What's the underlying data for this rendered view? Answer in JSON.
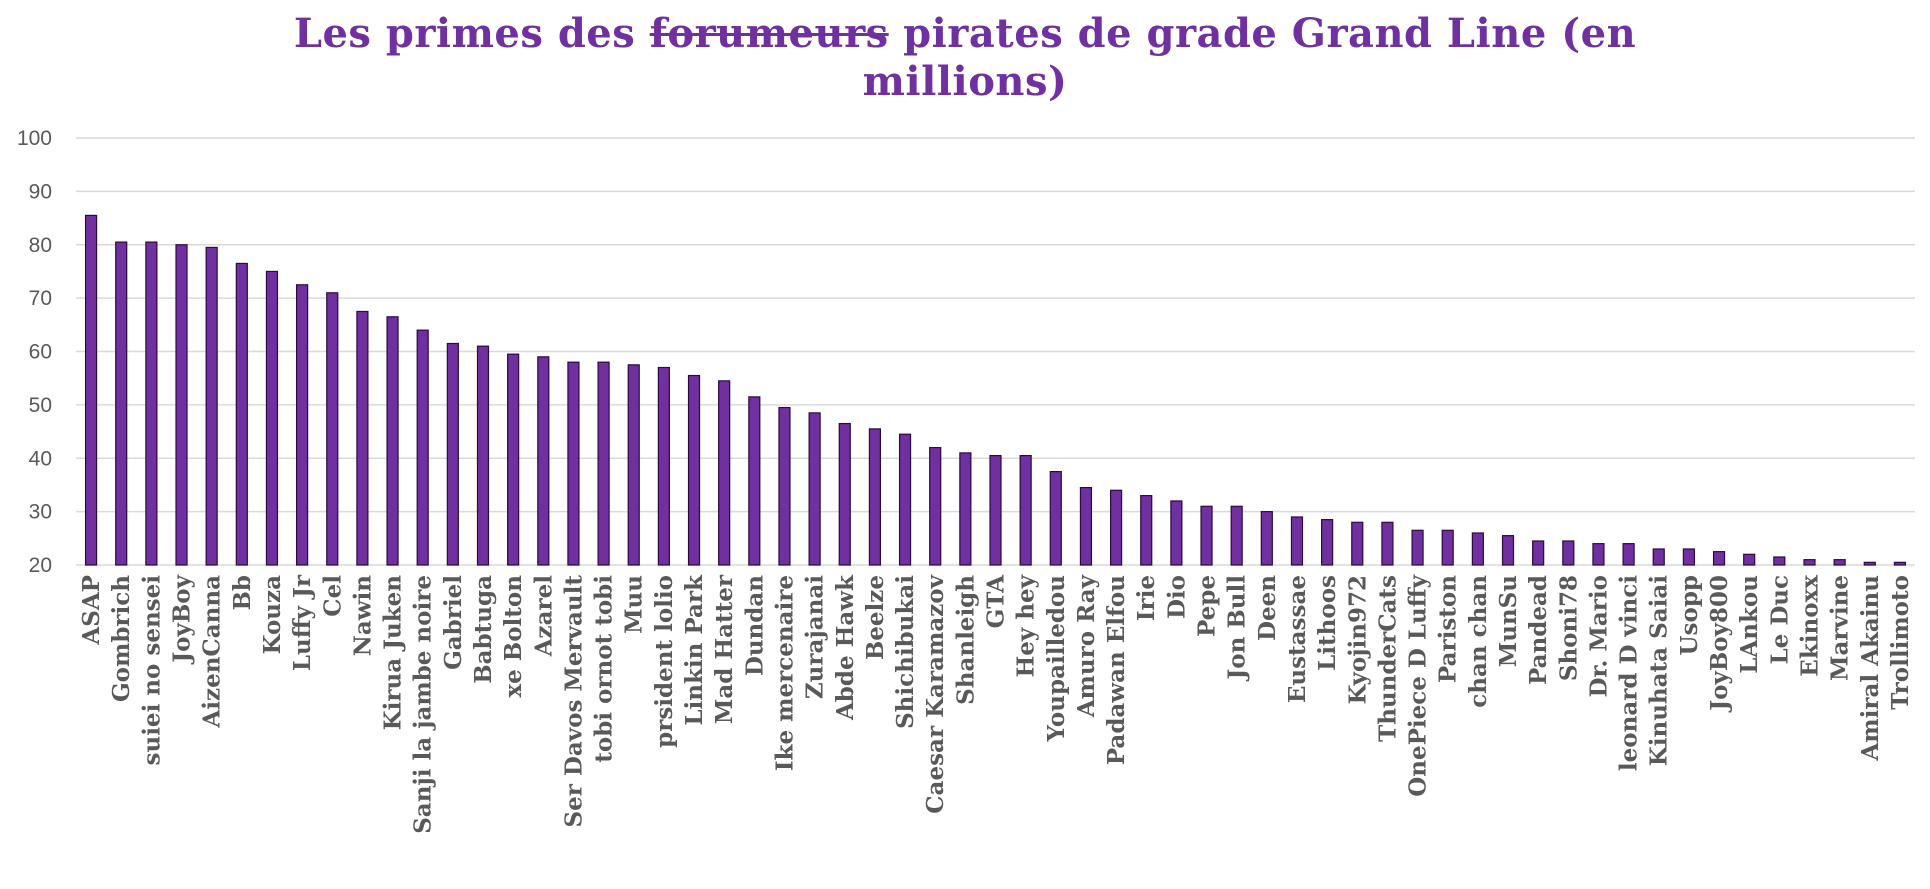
{
  "title": {
    "part1": "Les primes des ",
    "struck": "forumeurs",
    "part2": " pirates de grade Grand Line (en",
    "line2": "millions)"
  },
  "colors": {
    "bar": "#7030a0",
    "title": "#7030a0",
    "grid": "#d9d9d9",
    "text": "#595959"
  },
  "chart_data": {
    "type": "bar",
    "title": "Les primes des forumeurs pirates de grade Grand Line (en millions)",
    "xlabel": "",
    "ylabel": "",
    "ylim": [
      20,
      100
    ],
    "yticks": [
      20,
      30,
      40,
      50,
      60,
      70,
      80,
      90,
      100
    ],
    "grid": true,
    "legend": "none",
    "categories": [
      "ASAP",
      "Gombrich",
      "suiei no sensei",
      "JoyBoy",
      "AizenCanna",
      "Bb",
      "Kouza",
      "Luffy Jr",
      "Cel",
      "Nawin",
      "Kirua Juken",
      "Sanji la jambe noire",
      "Gabriel",
      "Babtuga",
      "xe Bolton",
      "Azarel",
      "Ser Davos Mervault",
      "tobi ornot tobi",
      "Muu",
      "prsident lolio",
      "Linkin Park",
      "Mad Hatter",
      "Dundan",
      "Ike mercenaire",
      "Zurajanai",
      "Abde Hawk",
      "Beelze",
      "Shichibukai",
      "Caesar Karamazov",
      "Shanleigh",
      "GTA",
      "Hey hey",
      "Youpailledou",
      "Amuro Ray",
      "Padawan Elfou",
      "Irie",
      "Dio",
      "Pepe",
      "Jon Bull",
      "Deen",
      "Eustassae",
      "Lithoos",
      "Kyojin972",
      "ThunderCats",
      "OnePiece D Luffy",
      "Pariston",
      "chan chan",
      "MunSu",
      "Pandead",
      "Shoni78",
      "Dr. Mario",
      "leonard D vinci",
      "Kinuhata Saiai",
      "Usopp",
      "JoyBoy800",
      "LAnkou",
      "Le Duc",
      "Ekinoxx",
      "Marvine",
      "Amiral Akainu",
      "Trollimoto"
    ],
    "values": [
      85.5,
      80.5,
      80.5,
      80,
      79.5,
      76.5,
      75,
      72.5,
      71,
      67.5,
      66.5,
      64,
      61.5,
      61,
      59.5,
      59,
      58,
      58,
      57.5,
      57,
      55.5,
      54.5,
      51.5,
      49.5,
      48.5,
      46.5,
      45.5,
      44.5,
      42,
      41,
      40.5,
      40.5,
      37.5,
      34.5,
      34,
      33,
      32,
      31,
      31,
      30,
      29,
      28.5,
      28,
      28,
      26.5,
      26.5,
      26,
      25.5,
      24.5,
      24.5,
      24,
      24,
      23,
      23,
      22.5,
      22,
      21.5,
      21,
      21,
      20.5,
      20.5
    ]
  }
}
